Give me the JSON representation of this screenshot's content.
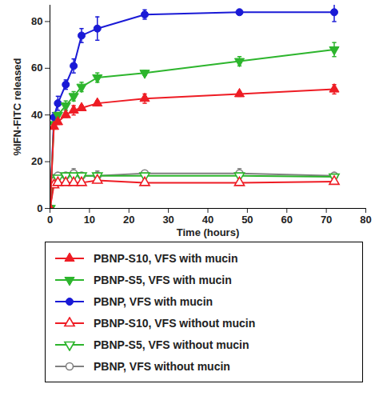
{
  "chart_data": {
    "type": "line",
    "x_label": "Time (hours)",
    "y_label": "%IFN-FITC released",
    "xlim": [
      0,
      80
    ],
    "xticks": [
      0,
      10,
      20,
      30,
      40,
      50,
      60,
      70,
      80
    ],
    "ylim": [
      0,
      87
    ],
    "yticks": [
      0,
      20,
      40,
      60,
      80
    ],
    "grid": false,
    "legend": "bottom",
    "x": [
      0,
      1,
      2,
      4,
      6,
      8,
      12,
      24,
      48,
      72
    ],
    "series": [
      {
        "name": "PBNP-S10, VFS with mucin",
        "color": "#ee1c24",
        "marker": "triangle",
        "values": [
          0,
          35,
          37,
          40,
          42,
          43,
          45,
          47,
          49,
          51
        ],
        "errors": [
          0,
          1,
          1,
          1,
          2,
          1,
          1,
          2,
          1,
          2
        ]
      },
      {
        "name": "PBNP-S5, VFS with mucin",
        "color": "#2db52d",
        "marker": "triangle-down",
        "values": [
          0,
          36,
          40,
          44,
          48,
          52,
          56,
          58,
          63,
          68
        ],
        "errors": [
          0,
          1,
          1,
          2,
          2,
          2,
          2,
          1,
          2,
          3
        ]
      },
      {
        "name": "PBNP, VFS with mucin",
        "color": "#1a1ad6",
        "marker": "circle",
        "values": [
          0,
          39,
          45,
          53,
          61,
          74,
          77,
          83,
          84,
          84
        ],
        "errors": [
          0,
          2,
          3,
          2,
          3,
          3,
          5,
          2,
          1,
          4
        ]
      },
      {
        "name": "PBNP-S10, VFS without mucin",
        "color": "#ee1c24",
        "marker": "triangle-open",
        "values": [
          0,
          10,
          11,
          11,
          11,
          11,
          12,
          11,
          11,
          11.5
        ],
        "errors": [
          0,
          1,
          1,
          1,
          1,
          1,
          1,
          1,
          1,
          1
        ]
      },
      {
        "name": "PBNP-S5, VFS without mucin",
        "color": "#2db52d",
        "marker": "triangle-down-open",
        "values": [
          0,
          12,
          13,
          14,
          14,
          14,
          14,
          14,
          14,
          13.5
        ],
        "errors": [
          0,
          1,
          1,
          1,
          1,
          1,
          1,
          1,
          1,
          1
        ]
      },
      {
        "name": "PBNP, VFS without mucin",
        "color": "#808080",
        "marker": "circle-open",
        "values": [
          0,
          13,
          14,
          14,
          15,
          14,
          14,
          15,
          15,
          14
        ],
        "errors": [
          0,
          1,
          1,
          1,
          2,
          1,
          2,
          1,
          2,
          1
        ]
      }
    ]
  }
}
